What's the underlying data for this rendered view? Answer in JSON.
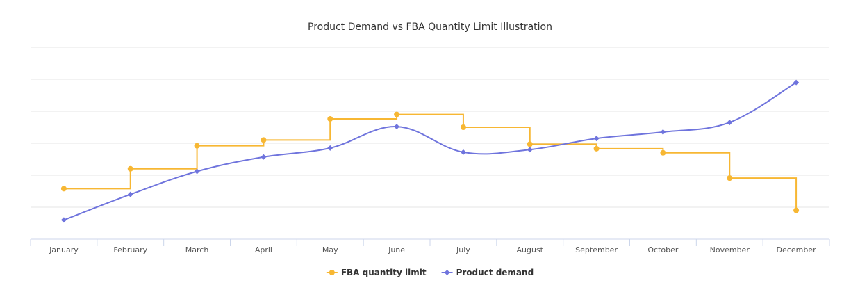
{
  "chart_data": {
    "type": "line",
    "title": "Product Demand vs FBA Quantity Limit Illustration",
    "xlabel": "",
    "ylabel": "",
    "categories": [
      "January",
      "February",
      "March",
      "April",
      "May",
      "June",
      "July",
      "August",
      "September",
      "October",
      "November",
      "December"
    ],
    "ylim": [
      0,
      6
    ],
    "grid": true,
    "legend_position": "bottom-center",
    "y_tick_labels_visible": false,
    "series": [
      {
        "name": "FBA quantity limit",
        "style": "step",
        "marker": "circle",
        "color": "#f7b733",
        "values": [
          1.58,
          2.2,
          2.92,
          3.1,
          3.76,
          3.9,
          3.5,
          2.97,
          2.83,
          2.7,
          1.91,
          0.9
        ]
      },
      {
        "name": "Product demand",
        "style": "spline",
        "marker": "diamond",
        "color": "#6f74dd",
        "values": [
          0.6,
          1.4,
          2.12,
          2.57,
          2.85,
          3.52,
          2.72,
          2.8,
          3.15,
          3.35,
          3.65,
          4.9
        ]
      }
    ]
  }
}
